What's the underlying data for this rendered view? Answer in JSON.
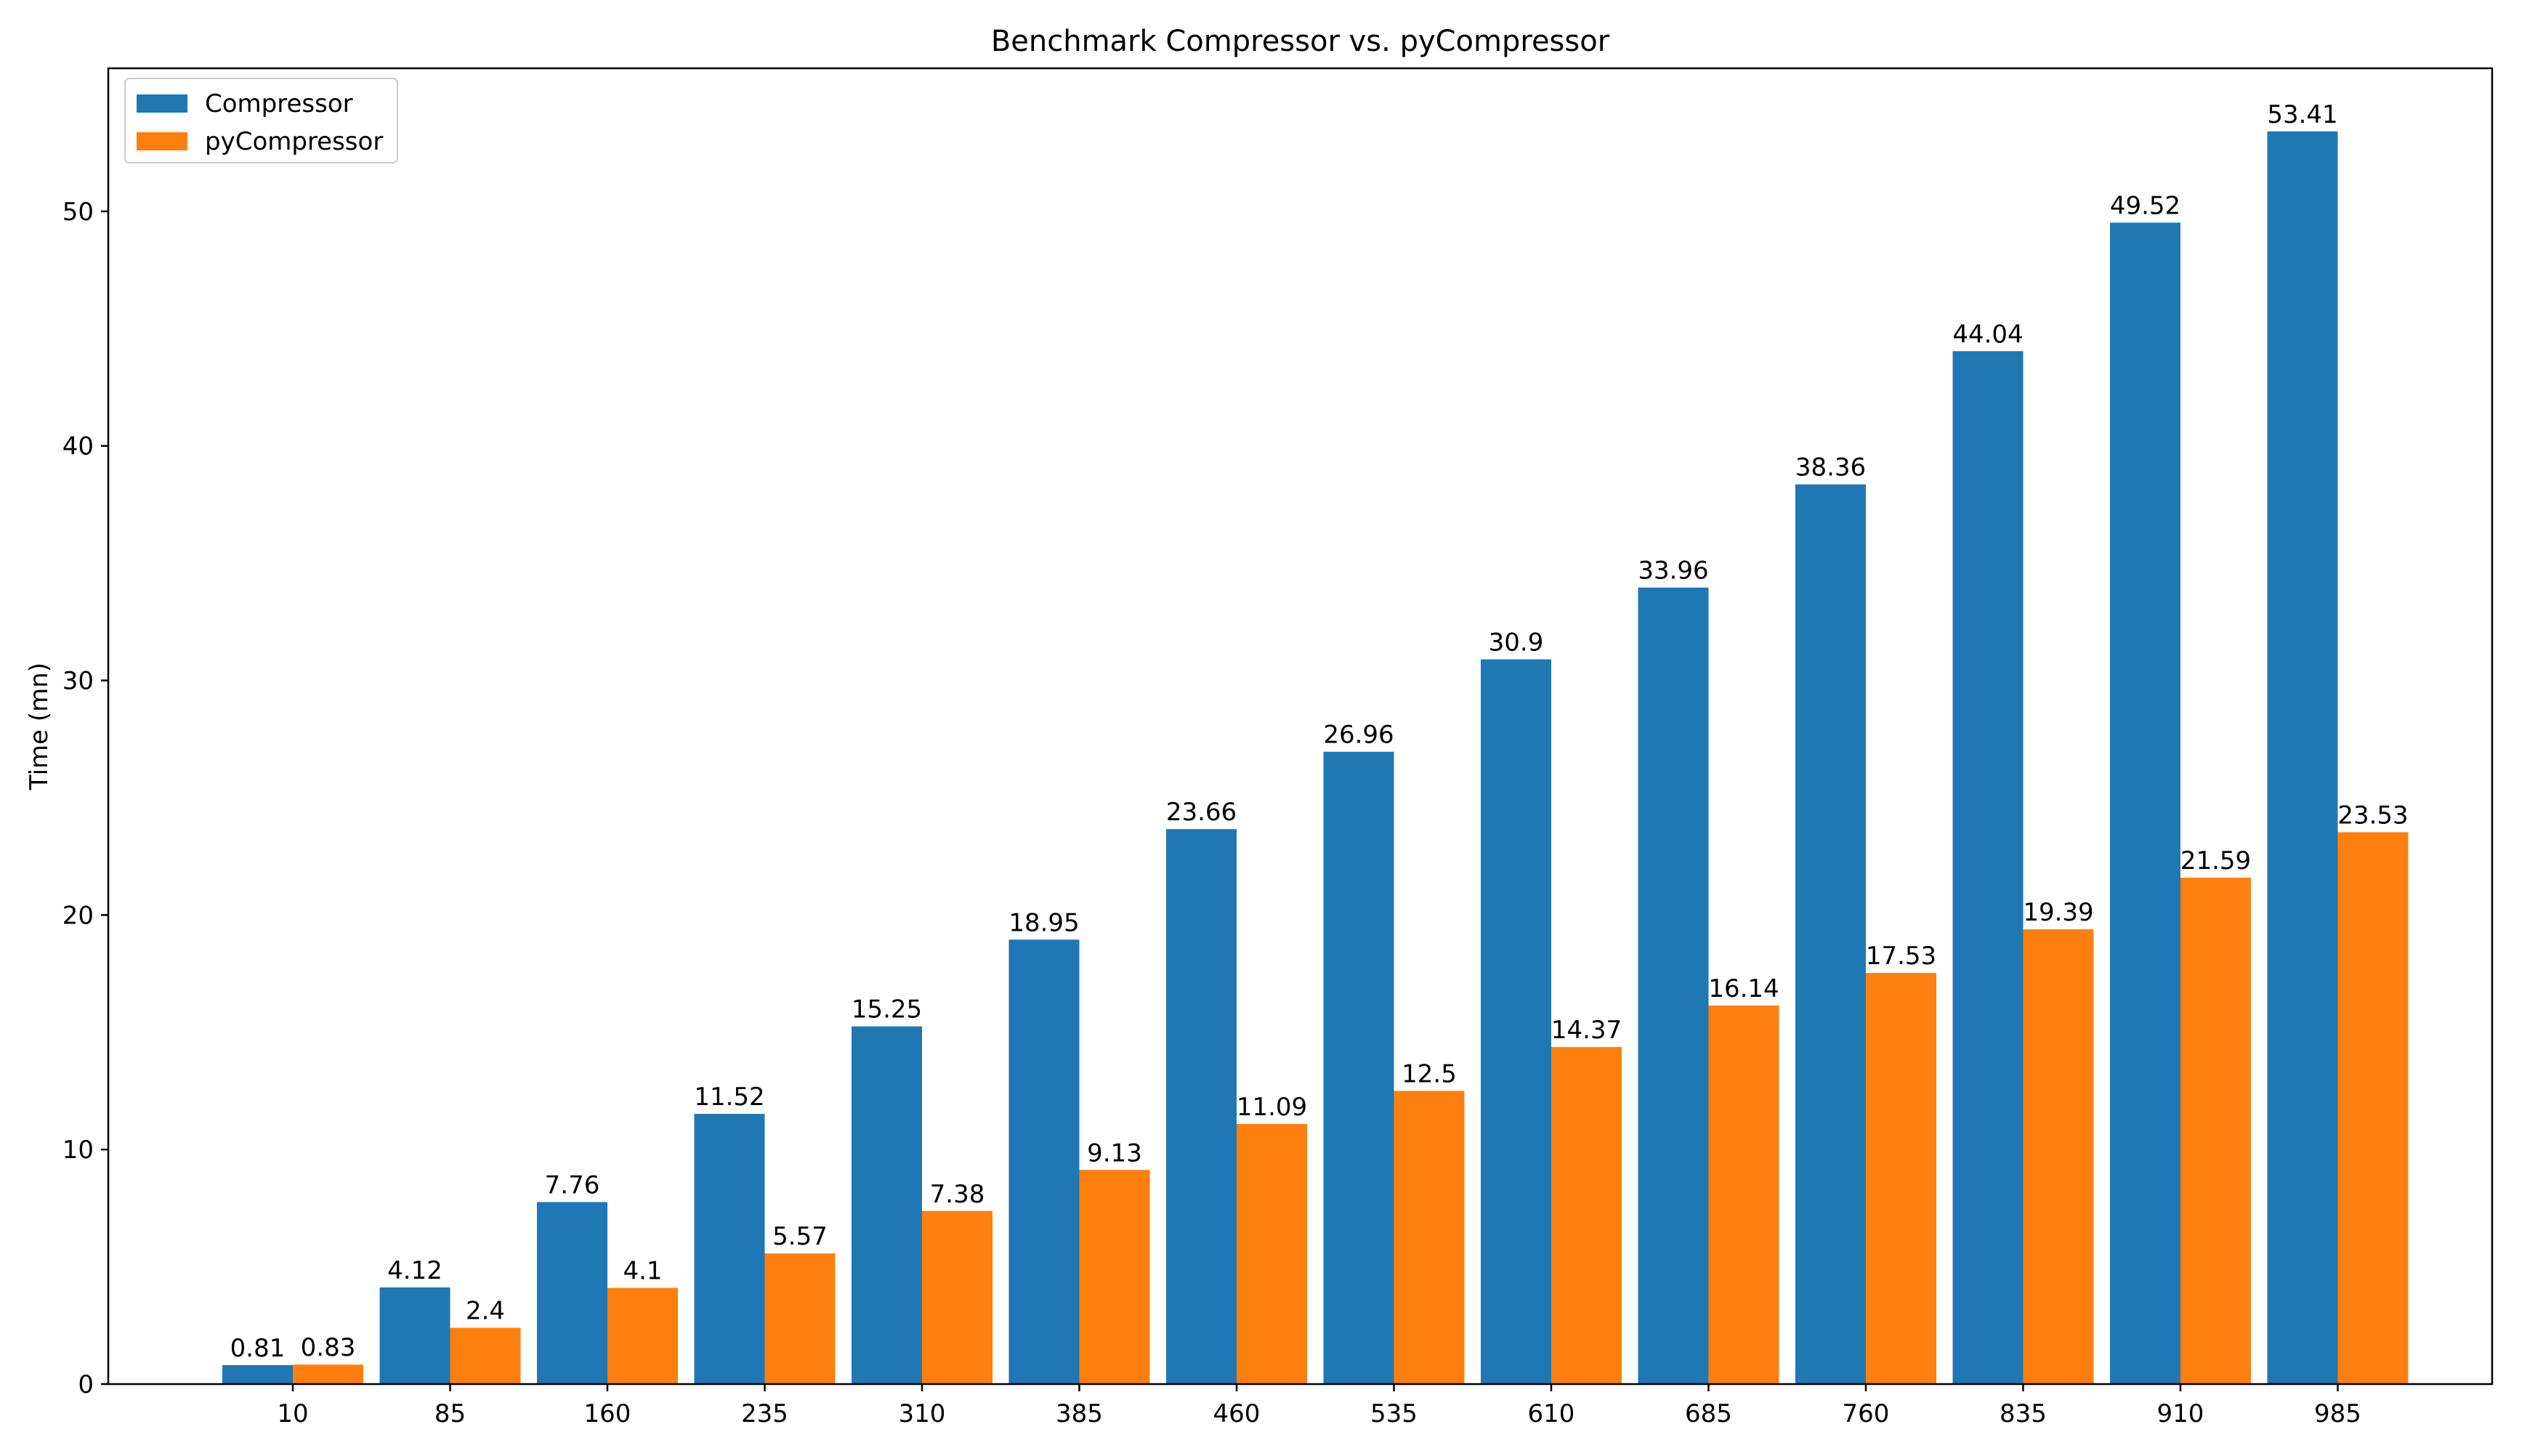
{
  "chart_data": {
    "type": "bar",
    "title": "Benchmark Compressor vs. pyCompressor",
    "xlabel": "",
    "ylabel": "Time (mn)",
    "categories": [
      "10",
      "85",
      "160",
      "235",
      "310",
      "385",
      "460",
      "535",
      "610",
      "685",
      "760",
      "835",
      "910",
      "985"
    ],
    "series": [
      {
        "name": "Compressor",
        "color": "#1f77b4",
        "values": [
          0.81,
          4.12,
          7.76,
          11.52,
          15.25,
          18.95,
          23.66,
          26.96,
          30.9,
          33.96,
          38.36,
          44.04,
          49.52,
          53.41
        ],
        "labels": [
          "0.81",
          "4.12",
          "7.76",
          "11.52",
          "15.25",
          "18.95",
          "23.66",
          "26.96",
          "30.9",
          "33.96",
          "38.36",
          "44.04",
          "49.52",
          "53.41"
        ]
      },
      {
        "name": "pyCompressor",
        "color": "#ff7f0e",
        "values": [
          0.83,
          2.4,
          4.1,
          5.57,
          7.38,
          9.13,
          11.09,
          12.5,
          14.37,
          16.14,
          17.53,
          19.39,
          21.59,
          23.53
        ],
        "labels": [
          "0.83",
          "2.4",
          "4.1",
          "5.57",
          "7.38",
          "9.13",
          "11.09",
          "12.5",
          "14.37",
          "16.14",
          "17.53",
          "19.39",
          "21.59",
          "23.53"
        ]
      }
    ],
    "ylim": [
      0,
      56.1
    ],
    "yticks": [
      0,
      10,
      20,
      30,
      40,
      50
    ],
    "ytick_labels": [
      "0",
      "10",
      "20",
      "30",
      "40",
      "50"
    ],
    "grid": false,
    "legend": "top-left"
  }
}
